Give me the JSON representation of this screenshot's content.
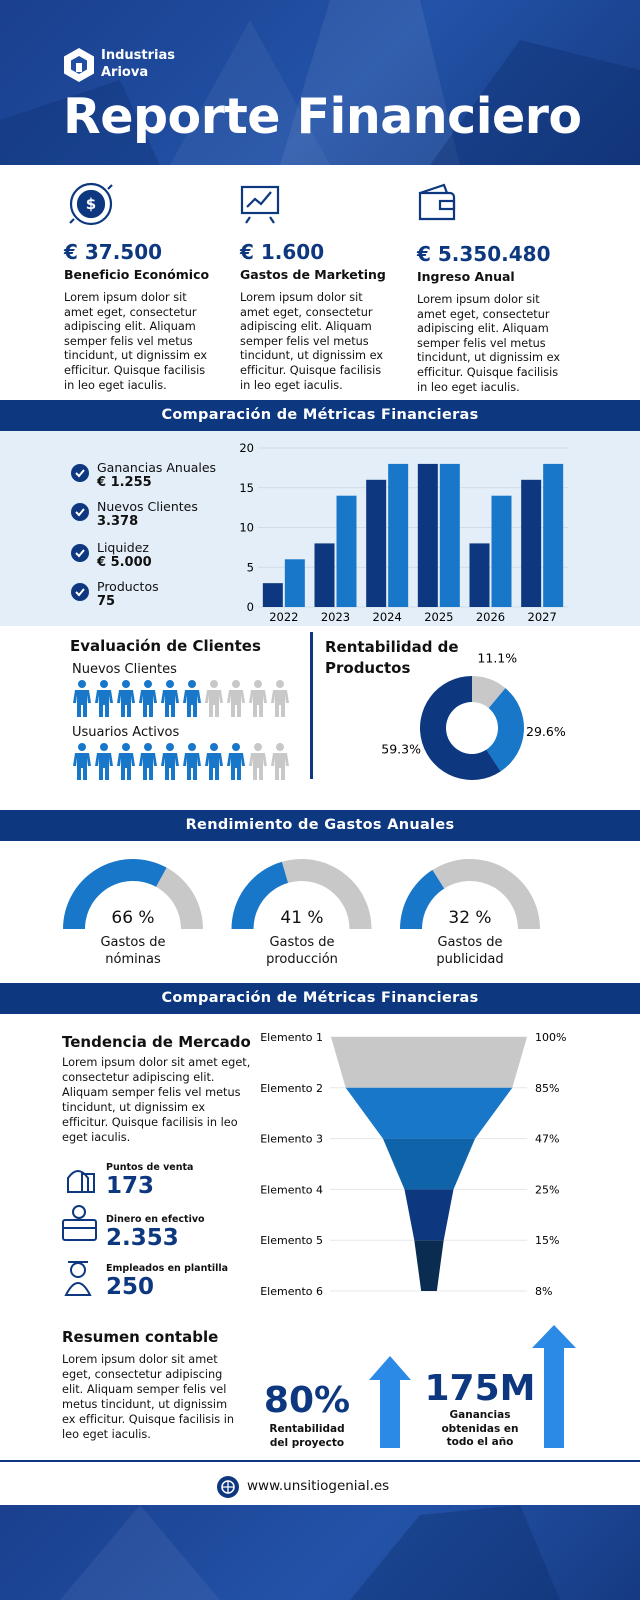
{
  "header": {
    "brand": [
      "Industrias",
      "Ariova"
    ],
    "title": "Reporte Financiero"
  },
  "kpis": [
    {
      "value": "€ 37.500",
      "label": "Beneficio Económico",
      "text": "Lorem ipsum dolor sit amet eget, consectetur adipiscing elit. Aliquam semper felis vel metus tincidunt, ut dignissim ex efficitur. Quisque facilisis in leo eget iaculis."
    },
    {
      "value": "€ 1.600",
      "label": "Gastos de Marketing",
      "text": "Lorem ipsum dolor sit amet eget, consectetur adipiscing elit. Aliquam semper felis vel metus tincidunt, ut dignissim ex efficitur. Quisque facilisis in leo eget iaculis."
    },
    {
      "value": "€ 5.350.480",
      "label": "Ingreso Anual",
      "text": "Lorem ipsum dolor sit amet eget, consectetur adipiscing elit. Aliquam semper felis vel metus tincidunt, ut dignissim ex efficitur. Quisque facilisis in leo eget iaculis."
    }
  ],
  "metrics": {
    "title": "Comparación de Métricas Financieras",
    "items": [
      {
        "label": "Ganancias Anuales",
        "value": "€ 1.255"
      },
      {
        "label": "Nuevos Clientes",
        "value": "3.378"
      },
      {
        "label": "Liquidez",
        "value": "€ 5.000"
      },
      {
        "label": "Productos",
        "value": "75"
      }
    ],
    "chart": {
      "type": "bar",
      "categories": [
        "2022",
        "2023",
        "2024",
        "2025",
        "2026",
        "2027"
      ],
      "series": [
        {
          "color": "#0d3880",
          "values": [
            3,
            8,
            16,
            18,
            8,
            16
          ]
        },
        {
          "color": "#1877c9",
          "values": [
            6,
            14,
            18,
            18,
            14,
            18
          ]
        }
      ],
      "ylim": [
        0,
        20
      ],
      "yticks": [
        0,
        5,
        10,
        15,
        20
      ],
      "grid": true
    }
  },
  "clients": {
    "title": "Evaluación de Clientes",
    "rows": [
      {
        "label": "Nuevos Clientes",
        "filled": 6,
        "total": 10
      },
      {
        "label": "Usuarios Activos",
        "filled": 8,
        "total": 10
      }
    ],
    "colors": [
      "#1877c9",
      "#c8c8c8"
    ]
  },
  "profitability": {
    "type": "pie",
    "title": "Rentabilidad de Productos",
    "values": [
      11.1,
      29.6,
      59.3
    ],
    "value_labels": [
      "11.1%",
      "29.6%",
      "59.3%"
    ],
    "colors": [
      "#c8c8c8",
      "#1877c9",
      "#0d3880"
    ]
  },
  "expenses": {
    "title": "Rendimiento de Gastos Anuales",
    "gauges": [
      {
        "value": 66,
        "value_label": "66 %",
        "label": "Gastos de nóminas"
      },
      {
        "value": 41,
        "value_label": "41 %",
        "label": "Gastos de producción"
      },
      {
        "value": 32,
        "value_label": "32 %",
        "label": "Gastos de publicidad"
      }
    ],
    "colors": [
      "#1877c9",
      "#c8c8c8"
    ]
  },
  "market": {
    "title": "Comparación de Métricas Financieras",
    "subtitle": "Tendencia de Mercado",
    "text": "Lorem ipsum dolor sit amet eget, consectetur adipiscing elit. Aliquam semper felis vel metus tincidunt, ut dignissim ex efficitur. Quisque facilisis in leo eget iaculis.",
    "stats": [
      {
        "label": "Puntos de venta",
        "value": "173"
      },
      {
        "label": "Dinero en efectivo",
        "value": "2.353"
      },
      {
        "label": "Empleados en plantilla",
        "value": "250"
      }
    ],
    "funnel": {
      "type": "funnel",
      "categories": [
        "Elemento 1",
        "Elemento 2",
        "Elemento 3",
        "Elemento 4",
        "Elemento 5",
        "Elemento 6"
      ],
      "values": [
        100,
        85,
        47,
        25,
        15,
        8
      ],
      "value_labels": [
        "100%",
        "85%",
        "47%",
        "25%",
        "15%",
        "8%"
      ],
      "colors": [
        "#c8c8c8",
        "#1877c9",
        "#0f63a8",
        "#0d3880",
        "#0a2c50"
      ]
    }
  },
  "summary": {
    "title": "Resumen contable",
    "text": "Lorem ipsum dolor sit amet eget, consectetur adipiscing elit. Aliquam semper felis vel metus tincidunt, ut dignissim ex efficitur. Quisque facilisis in leo eget iaculis.",
    "stats": [
      {
        "value": "80%",
        "label": "Rentabilidad del proyecto"
      },
      {
        "value": "175M",
        "label": "Ganancias obtenidas en todo el año"
      }
    ]
  },
  "footer": {
    "url": "www.unsitiogenial.es"
  }
}
